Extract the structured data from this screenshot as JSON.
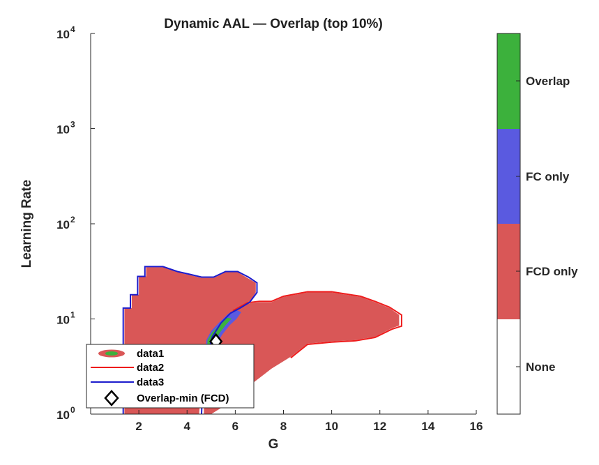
{
  "chart_data": {
    "type": "heatmap",
    "title": "Dynamic AAL — Overlap (top 10%)",
    "xlabel": "G",
    "ylabel": "Learning Rate",
    "xlim": [
      0,
      16
    ],
    "ylim": [
      1,
      10000
    ],
    "yscale": "log",
    "x_ticks": [
      2,
      4,
      6,
      8,
      10,
      12,
      14,
      16
    ],
    "y_ticks": [
      {
        "value": 1,
        "base": "10",
        "exp": "0"
      },
      {
        "value": 10,
        "base": "10",
        "exp": "1"
      },
      {
        "value": 100,
        "base": "10",
        "exp": "2"
      },
      {
        "value": 1000,
        "base": "10",
        "exp": "3"
      },
      {
        "value": 10000,
        "base": "10",
        "exp": "4"
      }
    ],
    "categories": [
      "None",
      "FCD only",
      "FC only",
      "Overlap"
    ],
    "colors": {
      "None": "#ffffff",
      "FCD only": "#d95757",
      "FC only": "#5a5ae0",
      "Overlap": "#3cb13c"
    },
    "regions": {
      "fcd_left": [
        [
          1.4,
          1
        ],
        [
          1.4,
          13
        ],
        [
          1.7,
          13
        ],
        [
          1.7,
          18
        ],
        [
          2.0,
          18
        ],
        [
          2.0,
          28
        ],
        [
          2.3,
          28
        ],
        [
          2.3,
          35
        ],
        [
          3.0,
          35
        ],
        [
          3.6,
          31
        ],
        [
          4.1,
          29
        ],
        [
          4.6,
          27
        ],
        [
          5.1,
          27
        ],
        [
          5.6,
          31
        ],
        [
          6.1,
          31
        ],
        [
          6.5,
          27
        ],
        [
          6.85,
          24
        ],
        [
          6.85,
          19
        ],
        [
          6.6,
          15
        ],
        [
          6.1,
          11.5
        ],
        [
          5.6,
          9.5
        ],
        [
          5.2,
          7.5
        ],
        [
          4.9,
          5.5
        ],
        [
          4.7,
          3.6
        ],
        [
          4.6,
          2
        ],
        [
          4.5,
          1
        ]
      ],
      "fcd_right": [
        [
          5.9,
          12
        ],
        [
          6.5,
          14.5
        ],
        [
          7.0,
          15
        ],
        [
          7.5,
          15
        ],
        [
          8.0,
          17
        ],
        [
          9.0,
          19
        ],
        [
          10.0,
          19
        ],
        [
          10.6,
          18
        ],
        [
          11.2,
          17
        ],
        [
          11.8,
          15
        ],
        [
          12.4,
          13
        ],
        [
          12.8,
          11
        ],
        [
          12.8,
          8.5
        ],
        [
          12.5,
          8
        ],
        [
          11.8,
          6.5
        ],
        [
          11.0,
          6
        ],
        [
          10.0,
          5.8
        ],
        [
          9.0,
          5.5
        ],
        [
          8.3,
          4
        ],
        [
          7.5,
          3
        ],
        [
          6.6,
          2
        ],
        [
          5.5,
          1.2
        ],
        [
          5.0,
          1
        ],
        [
          4.7,
          1
        ],
        [
          4.7,
          2.2
        ],
        [
          4.9,
          3.5
        ],
        [
          5.2,
          6
        ],
        [
          5.6,
          9
        ]
      ],
      "fc_region": [
        [
          4.75,
          3.2
        ],
        [
          4.8,
          6
        ],
        [
          5.0,
          7.5
        ],
        [
          5.3,
          9
        ],
        [
          5.7,
          11.3
        ],
        [
          6.05,
          12.4
        ],
        [
          6.25,
          11.8
        ],
        [
          6.05,
          10
        ],
        [
          5.75,
          8.5
        ],
        [
          5.45,
          6.8
        ],
        [
          5.15,
          5.0
        ],
        [
          4.9,
          3.4
        ]
      ],
      "overlap": [
        [
          4.8,
          3.4
        ],
        [
          4.85,
          6
        ],
        [
          5.05,
          7.3
        ],
        [
          5.35,
          8.6
        ],
        [
          5.65,
          10.3
        ],
        [
          5.85,
          10.1
        ],
        [
          5.6,
          8.6
        ],
        [
          5.35,
          7.1
        ],
        [
          5.1,
          5.4
        ],
        [
          4.9,
          3.6
        ]
      ],
      "data2_outline": [
        [
          5.9,
          12.2
        ],
        [
          6.5,
          14.8
        ],
        [
          7.0,
          15.3
        ],
        [
          7.5,
          15.3
        ],
        [
          8.0,
          17.3
        ],
        [
          9.0,
          19.3
        ],
        [
          10.0,
          19.3
        ],
        [
          10.6,
          18.3
        ],
        [
          11.2,
          17.3
        ],
        [
          11.8,
          15.3
        ],
        [
          12.4,
          13.3
        ],
        [
          12.9,
          11
        ],
        [
          12.9,
          8.4
        ],
        [
          12.5,
          7.8
        ],
        [
          11.8,
          6.4
        ],
        [
          11.0,
          5.9
        ],
        [
          10.0,
          5.7
        ],
        [
          9.0,
          5.4
        ],
        [
          8.3,
          3.9
        ]
      ],
      "data3_outline": [
        [
          1.35,
          1
        ],
        [
          1.35,
          13
        ],
        [
          1.65,
          13
        ],
        [
          1.65,
          18
        ],
        [
          1.95,
          18
        ],
        [
          1.95,
          28
        ],
        [
          2.25,
          28
        ],
        [
          2.25,
          35.5
        ],
        [
          3.0,
          35.5
        ],
        [
          3.6,
          31.5
        ],
        [
          4.1,
          29.5
        ],
        [
          4.6,
          27.5
        ],
        [
          5.1,
          27.5
        ],
        [
          5.6,
          31.5
        ],
        [
          6.1,
          31.5
        ],
        [
          6.55,
          27.5
        ],
        [
          6.9,
          24
        ],
        [
          6.9,
          19
        ],
        [
          6.6,
          15
        ],
        [
          6.2,
          13
        ],
        [
          5.8,
          11.5
        ],
        [
          5.4,
          9
        ],
        [
          5.05,
          6.5
        ],
        [
          4.8,
          3.8
        ],
        [
          4.65,
          2
        ],
        [
          4.6,
          1
        ]
      ]
    },
    "marker": {
      "name": "Overlap-min (FCD)",
      "x": 5.2,
      "y": 5.8
    },
    "legend": {
      "position": "bottom-left",
      "entries": [
        "data1",
        "data2",
        "data3",
        "Overlap-min (FCD)"
      ]
    },
    "colorbar_labels": [
      "None",
      "FCD only",
      "FC only",
      "Overlap"
    ]
  }
}
